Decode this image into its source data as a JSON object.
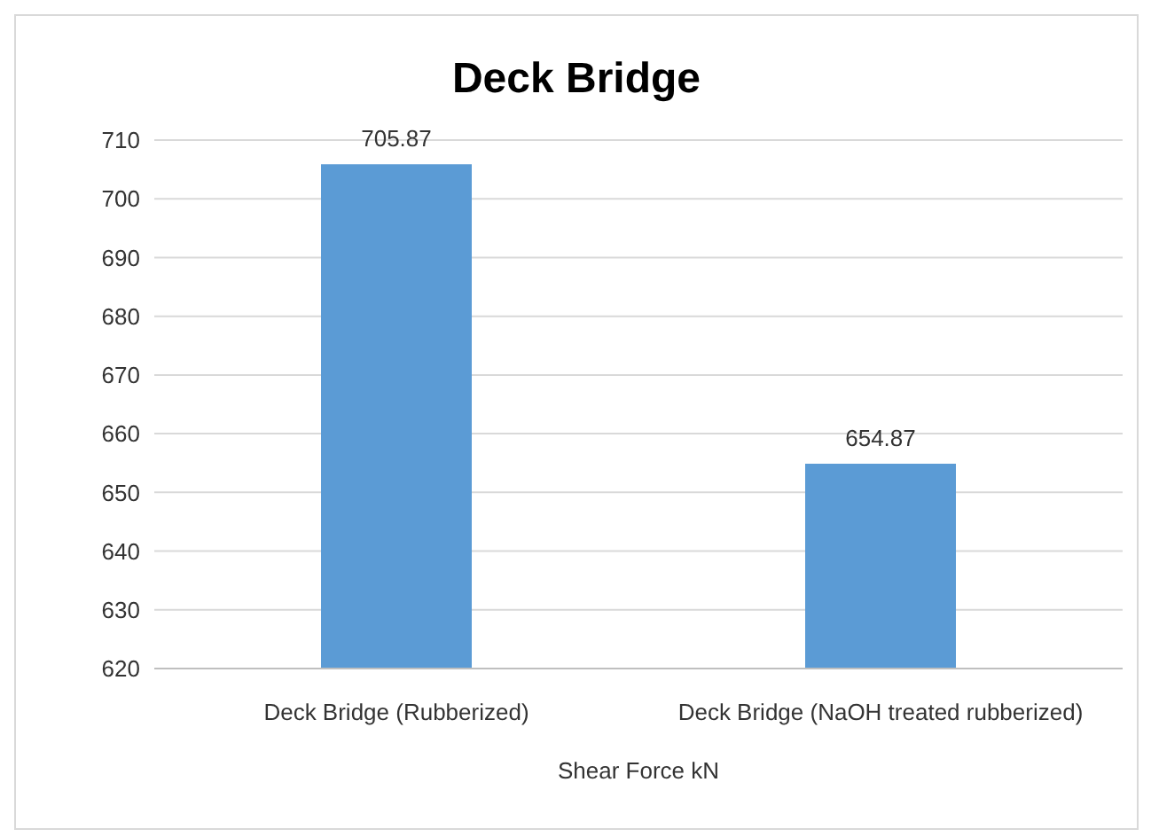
{
  "chart_data": {
    "type": "bar",
    "title": "Deck Bridge",
    "xlabel": "Shear Force kN",
    "categories": [
      "Deck Bridge (Rubberized)",
      "Deck Bridge (NaOH treated rubberized)"
    ],
    "values": [
      705.87,
      654.87
    ],
    "color": "#5b9bd5",
    "ylim": [
      620,
      710
    ],
    "yticks": [
      620,
      630,
      640,
      650,
      660,
      670,
      680,
      690,
      700,
      710
    ],
    "grid": "y",
    "data_labels": true,
    "legend": false
  }
}
